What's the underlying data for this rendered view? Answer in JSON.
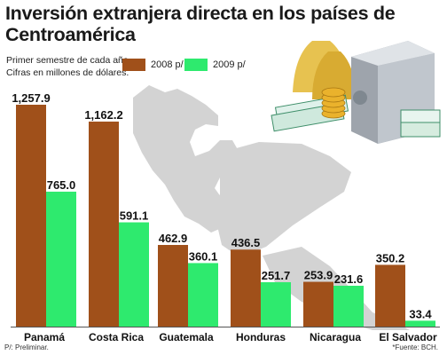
{
  "title": "Inversión extranjera directa en los países de Centroamérica",
  "subtitle_lines": [
    "Primer semestre de cada año.",
    "Cifras en millones de dólares."
  ],
  "footnotes": {
    "left": "P/: Preliminar.",
    "right": "*Fuente: BCH."
  },
  "colors": {
    "series_2008": "#a0501a",
    "series_2009": "#2eea6e",
    "baseline": "#555555"
  },
  "chart_data": {
    "type": "bar",
    "title": "Inversión extranjera directa en los países de Centroamérica",
    "subtitle": "Primer semestre de cada año. Cifras en millones de dólares.",
    "xlabel": "",
    "ylabel": "",
    "ylim": [
      0,
      1257.9
    ],
    "grid": false,
    "legend_position": "top",
    "categories": [
      "Panamá",
      "Costa Rica",
      "Guatemala",
      "Honduras",
      "Nicaragua",
      "El Salvador"
    ],
    "series": [
      {
        "name": "2008 p/",
        "values": [
          1257.9,
          1162.2,
          462.9,
          436.5,
          253.9,
          350.2
        ]
      },
      {
        "name": "2009 p/",
        "values": [
          765.0,
          591.1,
          360.1,
          251.7,
          231.6,
          33.4
        ]
      }
    ],
    "value_labels": [
      [
        "1,257.9",
        "1,162.2",
        "462.9",
        "436.5",
        "253.9",
        "350.2"
      ],
      [
        "765.0",
        "591.1",
        "360.1",
        "251.7",
        "231.6",
        "33.4"
      ]
    ]
  }
}
